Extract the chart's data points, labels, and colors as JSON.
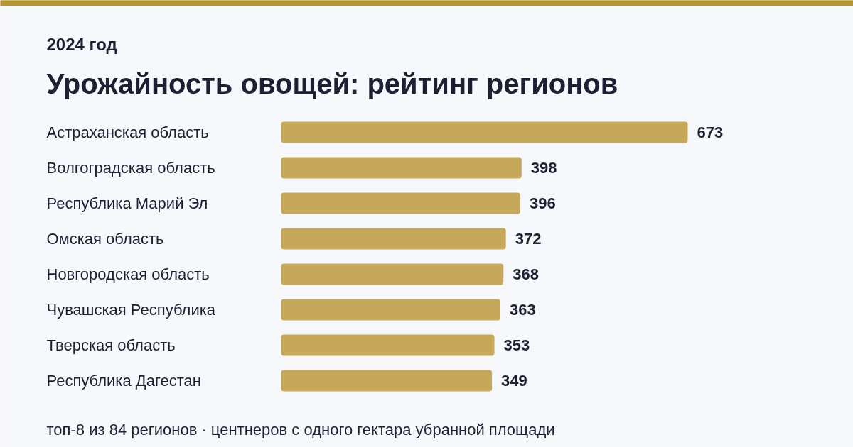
{
  "chart_data": {
    "type": "bar",
    "orientation": "horizontal",
    "subtitle": "2024 год",
    "title": "Урожайность овощей: рейтинг регионов",
    "categories": [
      "Астраханская область",
      "Волгоградская область",
      "Республика Марий Эл",
      "Омская область",
      "Новгородская область",
      "Чувашская Республика",
      "Тверская область",
      "Республика Дагестан"
    ],
    "values": [
      673,
      398,
      396,
      372,
      368,
      363,
      353,
      349
    ],
    "color": "#c5a85a",
    "data_labels": true,
    "grid": false,
    "annotations": [
      "топ-8 из 84 регионов · центнеров с одного гектара убранной площади"
    ]
  }
}
